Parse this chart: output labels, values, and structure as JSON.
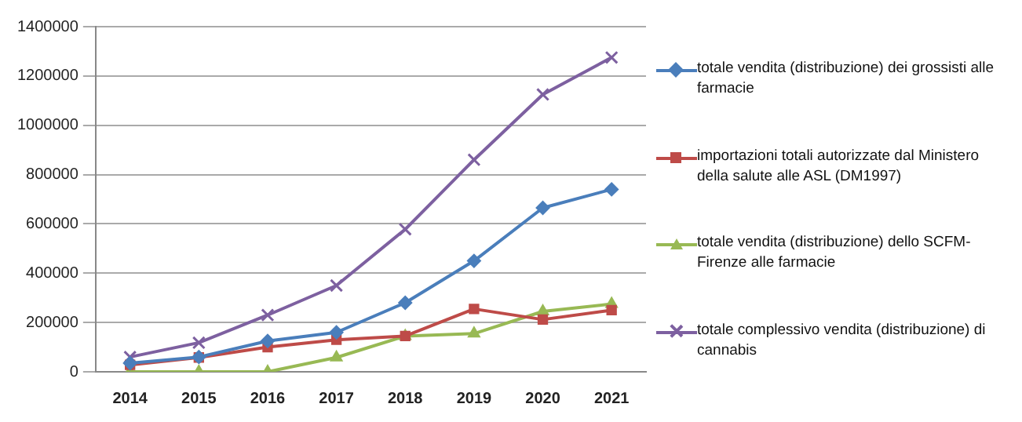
{
  "chart_data": {
    "type": "line",
    "categories": [
      "2014",
      "2015",
      "2016",
      "2017",
      "2018",
      "2019",
      "2020",
      "2021"
    ],
    "series": [
      {
        "name": "totale vendita (distribuzione) dei grossisti alle farmacie",
        "color": "#4a7ebb",
        "marker": "diamond",
        "values": [
          35000,
          60000,
          125000,
          160000,
          280000,
          450000,
          665000,
          740000
        ]
      },
      {
        "name": "importazioni totali autorizzate dal Ministero della salute alle ASL (DM1997)",
        "color": "#be4b48",
        "marker": "square",
        "values": [
          28000,
          58000,
          100000,
          130000,
          145000,
          255000,
          212000,
          250000
        ]
      },
      {
        "name": "totale vendita (distribuzione) dello SCFM-Firenze alle farmacie",
        "color": "#98b954",
        "marker": "triangle",
        "values": [
          0,
          0,
          0,
          58000,
          145000,
          155000,
          245000,
          275000
        ]
      },
      {
        "name": "totale complessivo vendita (distribuzione) di cannabis",
        "color": "#7d60a0",
        "marker": "cross",
        "values": [
          60000,
          118000,
          230000,
          350000,
          578000,
          860000,
          1125000,
          1275000
        ]
      }
    ],
    "ylim": [
      0,
      1400000
    ],
    "yticks": [
      0,
      200000,
      400000,
      600000,
      800000,
      1000000,
      1200000,
      1400000
    ],
    "grid": "y",
    "legend": "right",
    "line_style": "solid"
  }
}
